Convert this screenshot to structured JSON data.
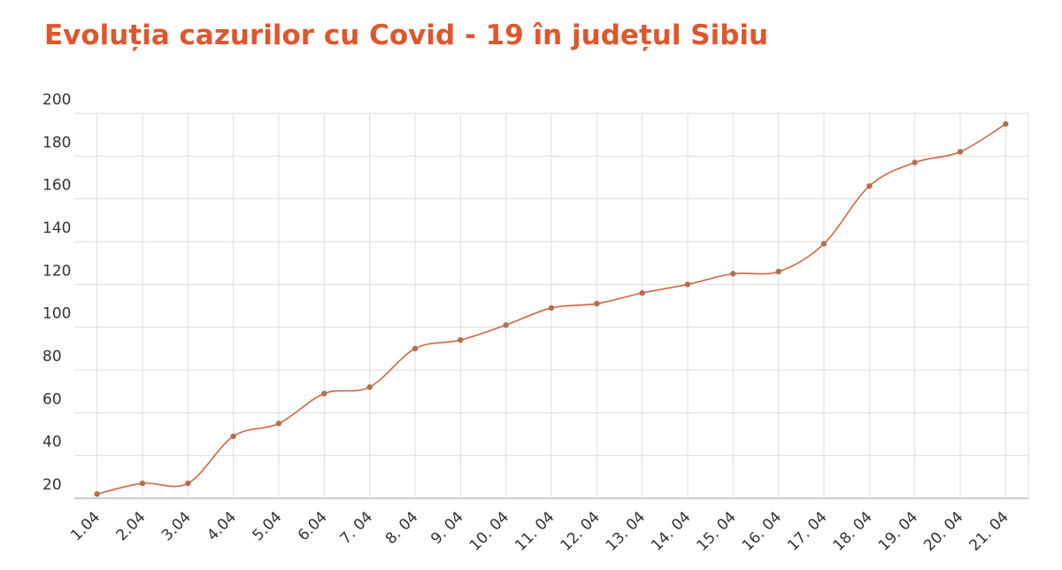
{
  "chart_data": {
    "type": "line",
    "title": "Evoluția cazurilor cu Covid - 19 în județul Sibiu",
    "categories": [
      "1.04",
      "2.04",
      "3.04",
      "4.04",
      "5.04",
      "6.04",
      "7. 04",
      "8. 04",
      "9. 04",
      "10. 04",
      "11. 04",
      "12. 04",
      "13. 04",
      "14. 04",
      "15. 04",
      "16. 04",
      "17. 04",
      "18. 04",
      "19. 04",
      "20. 04",
      "21. 04"
    ],
    "values": [
      22,
      27,
      27,
      49,
      55,
      69,
      72,
      90,
      94,
      101,
      109,
      111,
      116,
      120,
      125,
      126,
      139,
      166,
      177,
      182,
      195
    ],
    "color": "#d2653f",
    "marker_color": "#b0704c",
    "ylim": [
      20,
      200
    ],
    "yticks": [
      20,
      40,
      60,
      80,
      100,
      120,
      140,
      160,
      180,
      200
    ],
    "grid": true
  }
}
